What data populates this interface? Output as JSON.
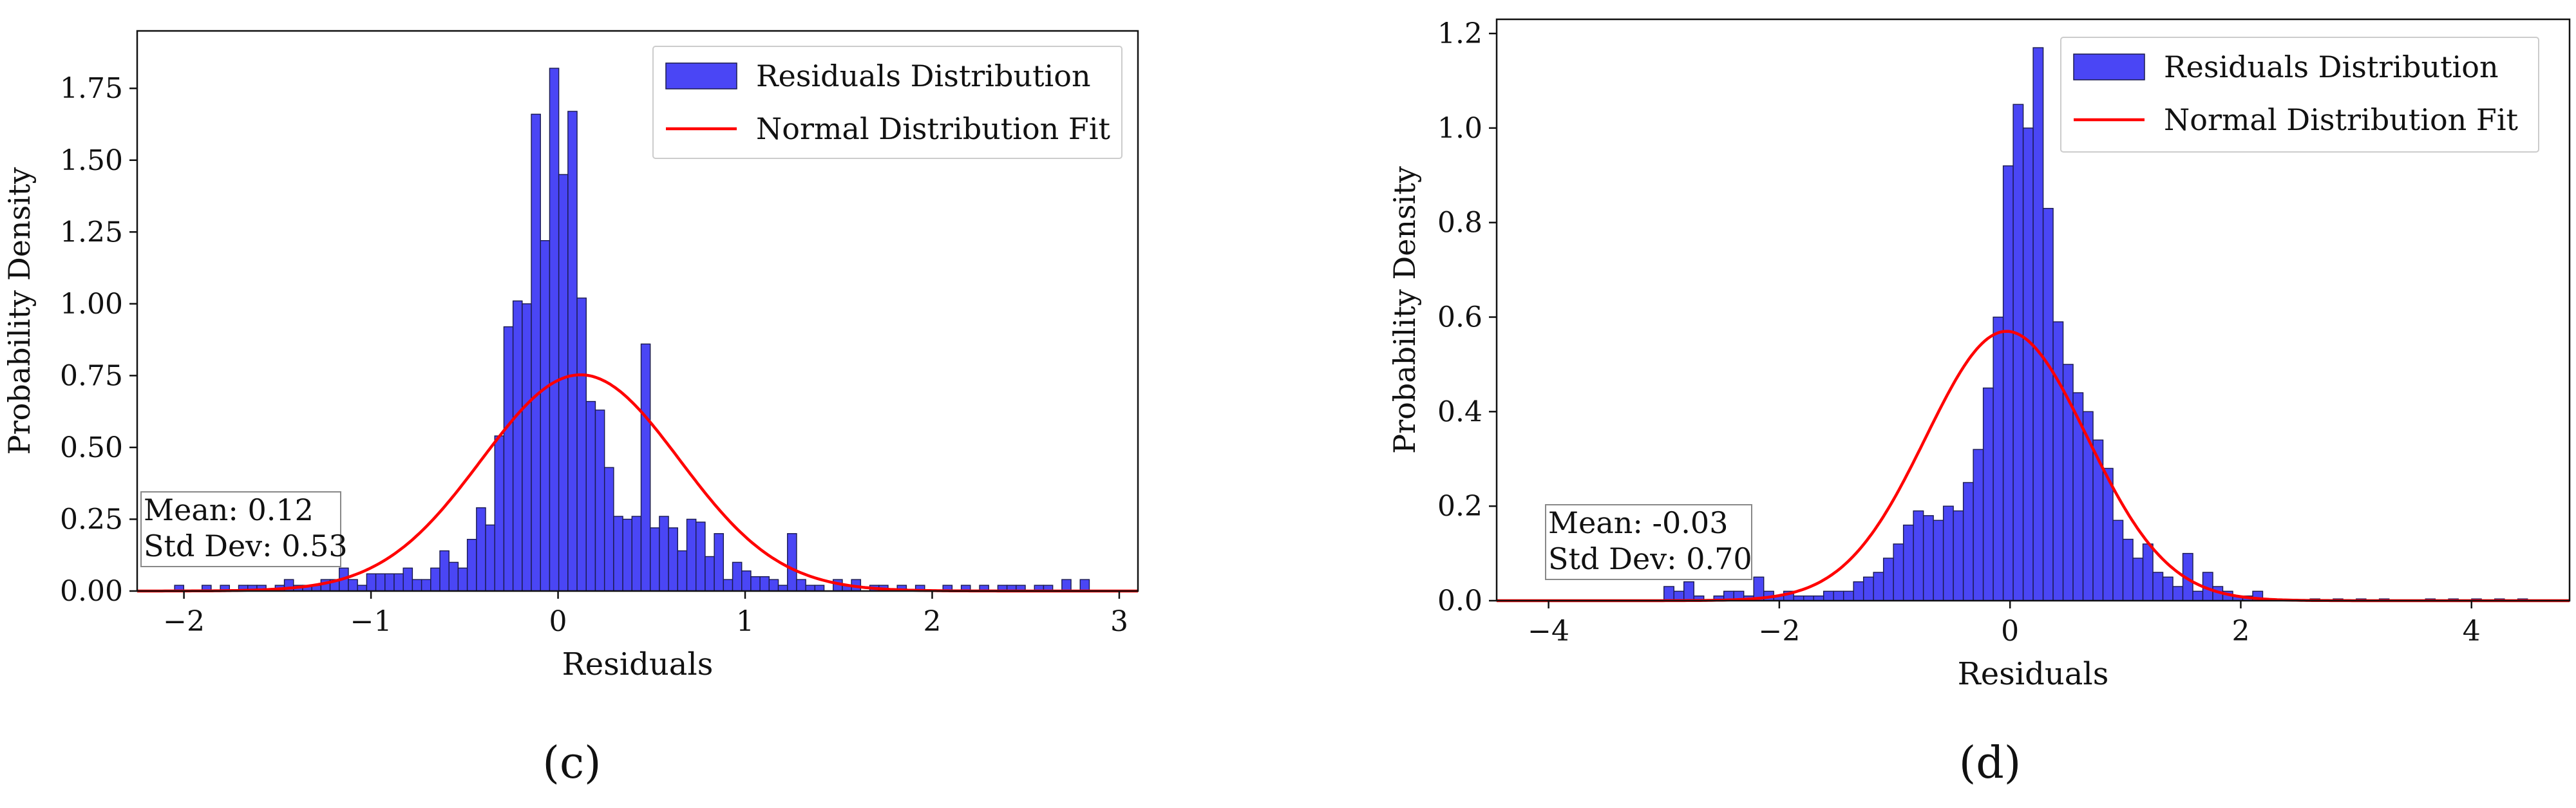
{
  "chart_data": [
    {
      "id": "c",
      "type": "bar",
      "panel_label": "(c)",
      "title": "",
      "xlabel": "Residuals",
      "ylabel": "Probability Density",
      "xlim": [
        -2.25,
        3.1
      ],
      "ylim": [
        0,
        1.95
      ],
      "xticks": [
        -2,
        -1,
        0,
        1,
        2,
        3
      ],
      "xtick_labels": [
        "−2",
        "−1",
        "0",
        "1",
        "2",
        "3"
      ],
      "yticks": [
        0,
        0.25,
        0.5,
        0.75,
        1.0,
        1.25,
        1.5,
        1.75
      ],
      "ytick_labels": [
        "0.00",
        "0.25",
        "0.50",
        "0.75",
        "1.00",
        "1.25",
        "1.50",
        "1.75"
      ],
      "bin_start": -2.05,
      "bin_width": 0.0489,
      "values": [
        0.02,
        0,
        0,
        0.02,
        0,
        0.02,
        0,
        0.02,
        0.02,
        0.02,
        0,
        0.02,
        0.04,
        0.02,
        0.02,
        0.02,
        0.04,
        0.04,
        0.08,
        0.04,
        0.02,
        0.06,
        0.06,
        0.06,
        0.06,
        0.08,
        0.04,
        0.04,
        0.08,
        0.14,
        0.1,
        0.08,
        0.18,
        0.29,
        0.23,
        0.54,
        0.92,
        1.01,
        1.0,
        1.66,
        1.22,
        1.82,
        1.45,
        1.67,
        1.02,
        0.66,
        0.63,
        0.43,
        0.26,
        0.25,
        0.26,
        0.86,
        0.22,
        0.26,
        0.22,
        0.14,
        0.25,
        0.24,
        0.12,
        0.2,
        0.04,
        0.1,
        0.07,
        0.05,
        0.05,
        0.04,
        0.02,
        0.2,
        0.04,
        0.02,
        0.02,
        0,
        0.04,
        0.02,
        0.04,
        0,
        0.02,
        0.02,
        0,
        0.02,
        0,
        0.02,
        0,
        0,
        0.02,
        0,
        0.02,
        0,
        0.02,
        0,
        0.02,
        0.02,
        0.02,
        0,
        0.02,
        0.02,
        0,
        0.04,
        0,
        0.04
      ],
      "legend": [
        "Residuals Distribution",
        "Normal Distribution Fit"
      ],
      "legend_position": "top-right",
      "fit": {
        "mean": 0.12,
        "std": 0.53
      },
      "annotation": [
        "Mean: 0.12",
        "Std Dev: 0.53"
      ],
      "colors": {
        "bar": "#4a46f5",
        "bar_edge": "#1a1a4e",
        "fit": "#ff0000"
      }
    },
    {
      "id": "d",
      "type": "bar",
      "panel_label": "(d)",
      "title": "",
      "xlabel": "Residuals",
      "ylabel": "Probability Density",
      "xlim": [
        -4.45,
        4.85
      ],
      "ylim": [
        0,
        1.23
      ],
      "xticks": [
        -4,
        -2,
        0,
        2,
        4
      ],
      "xtick_labels": [
        "−4",
        "−2",
        "0",
        "2",
        "4"
      ],
      "yticks": [
        0,
        0.2,
        0.4,
        0.6,
        0.8,
        1.0,
        1.2
      ],
      "ytick_labels": [
        "0.0",
        "0.2",
        "0.4",
        "0.6",
        "0.8",
        "1.0",
        "1.2"
      ],
      "bin_start": -3.0,
      "bin_width": 0.0865,
      "values": [
        0.03,
        0.02,
        0.04,
        0.01,
        0,
        0.01,
        0.02,
        0.02,
        0.01,
        0.05,
        0.02,
        0.01,
        0.02,
        0.01,
        0.01,
        0.01,
        0.02,
        0.02,
        0.02,
        0.04,
        0.05,
        0.06,
        0.09,
        0.12,
        0.16,
        0.19,
        0.18,
        0.17,
        0.2,
        0.19,
        0.25,
        0.32,
        0.45,
        0.6,
        0.92,
        1.05,
        1.0,
        1.17,
        0.83,
        0.59,
        0.5,
        0.44,
        0.4,
        0.34,
        0.28,
        0.17,
        0.13,
        0.09,
        0.12,
        0.06,
        0.05,
        0.03,
        0.1,
        0.02,
        0.06,
        0.03,
        0.02,
        0.01,
        0.01,
        0.02
      ],
      "tail_markers": [
        2.6,
        2.8,
        3.0,
        3.2,
        3.6,
        3.8,
        4.0,
        4.2,
        4.4
      ],
      "legend": [
        "Residuals Distribution",
        "Normal Distribution Fit"
      ],
      "legend_position": "top-right",
      "fit": {
        "mean": -0.03,
        "std": 0.7
      },
      "annotation": [
        "Mean: -0.03",
        "Std Dev: 0.70"
      ],
      "colors": {
        "bar": "#4a46f5",
        "bar_edge": "#1a1a4e",
        "fit": "#ff0000"
      }
    }
  ]
}
